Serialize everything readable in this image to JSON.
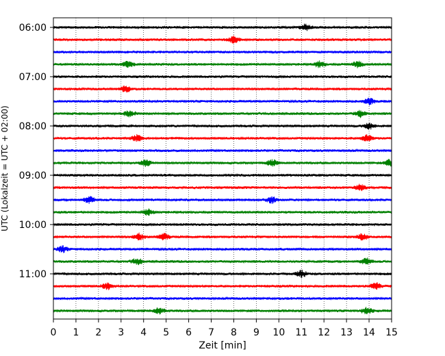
{
  "chart_data": {
    "type": "line",
    "subtype": "helicorder",
    "title": "",
    "xlabel": "Zeit  [min]",
    "ylabel": "UTC (Lokalzeit = UTC + 02:00)",
    "xlim": [
      0,
      15
    ],
    "x_ticks": [
      "0",
      "1",
      "2",
      "3",
      "4",
      "5",
      "6",
      "7",
      "8",
      "9",
      "10",
      "11",
      "12",
      "13",
      "14",
      "15"
    ],
    "y_tick_labels": [
      "06:00",
      "07:00",
      "08:00",
      "09:00",
      "10:00",
      "11:00"
    ],
    "trace_interval_min": 15,
    "trace_colors": [
      "#000000",
      "#ff0000",
      "#0000ff",
      "#008000"
    ],
    "grid": "vertical dotted lines at each minute",
    "traces": [
      {
        "start": "06:00",
        "color": "#000000",
        "events_min": [
          11.2
        ]
      },
      {
        "start": "06:15",
        "color": "#ff0000",
        "events_min": [
          8.0
        ]
      },
      {
        "start": "06:30",
        "color": "#0000ff",
        "events_min": []
      },
      {
        "start": "06:45",
        "color": "#008000",
        "events_min": [
          3.3,
          11.8,
          13.5
        ]
      },
      {
        "start": "07:00",
        "color": "#000000",
        "events_min": []
      },
      {
        "start": "07:15",
        "color": "#ff0000",
        "events_min": [
          3.2
        ]
      },
      {
        "start": "07:30",
        "color": "#0000ff",
        "events_min": [
          14.0
        ]
      },
      {
        "start": "07:45",
        "color": "#008000",
        "events_min": [
          3.4,
          13.6
        ]
      },
      {
        "start": "08:00",
        "color": "#000000",
        "events_min": [
          14.0
        ]
      },
      {
        "start": "08:15",
        "color": "#ff0000",
        "events_min": [
          3.7,
          13.9
        ]
      },
      {
        "start": "08:30",
        "color": "#0000ff",
        "events_min": []
      },
      {
        "start": "08:45",
        "color": "#008000",
        "events_min": [
          4.1,
          9.7,
          14.9
        ]
      },
      {
        "start": "09:00",
        "color": "#000000",
        "events_min": []
      },
      {
        "start": "09:15",
        "color": "#ff0000",
        "events_min": [
          13.6
        ]
      },
      {
        "start": "09:30",
        "color": "#0000ff",
        "events_min": [
          1.6,
          9.7
        ]
      },
      {
        "start": "09:45",
        "color": "#008000",
        "events_min": [
          4.2
        ]
      },
      {
        "start": "10:00",
        "color": "#000000",
        "events_min": []
      },
      {
        "start": "10:15",
        "color": "#ff0000",
        "events_min": [
          3.8,
          4.9,
          13.7
        ]
      },
      {
        "start": "10:30",
        "color": "#0000ff",
        "events_min": [
          0.4
        ]
      },
      {
        "start": "10:45",
        "color": "#008000",
        "events_min": [
          3.7,
          13.9
        ]
      },
      {
        "start": "11:00",
        "color": "#000000",
        "events_min": [
          11.0
        ]
      },
      {
        "start": "11:15",
        "color": "#ff0000",
        "events_min": [
          2.4,
          14.3
        ]
      },
      {
        "start": "11:30",
        "color": "#0000ff",
        "events_min": []
      },
      {
        "start": "11:45",
        "color": "#008000",
        "events_min": [
          4.7,
          13.9
        ]
      }
    ]
  }
}
